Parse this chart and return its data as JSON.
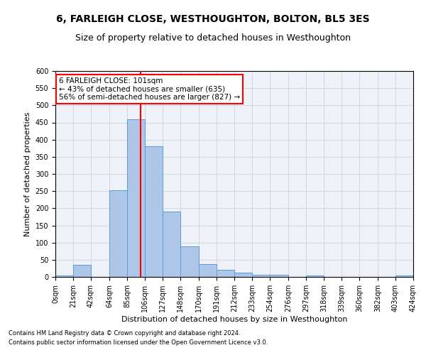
{
  "title": "6, FARLEIGH CLOSE, WESTHOUGHTON, BOLTON, BL5 3ES",
  "subtitle": "Size of property relative to detached houses in Westhoughton",
  "xlabel": "Distribution of detached houses by size in Westhoughton",
  "ylabel": "Number of detached properties",
  "footnote1": "Contains HM Land Registry data © Crown copyright and database right 2024.",
  "footnote2": "Contains public sector information licensed under the Open Government Licence v3.0.",
  "annotation_line1": "6 FARLEIGH CLOSE: 101sqm",
  "annotation_line2": "← 43% of detached houses are smaller (635)",
  "annotation_line3": "56% of semi-detached houses are larger (827) →",
  "property_size": 101,
  "bin_edges": [
    0,
    21,
    42,
    64,
    85,
    106,
    127,
    148,
    170,
    191,
    212,
    233,
    254,
    276,
    297,
    318,
    339,
    360,
    382,
    403,
    424
  ],
  "bin_counts": [
    5,
    35,
    0,
    253,
    460,
    380,
    190,
    90,
    38,
    20,
    13,
    7,
    6,
    0,
    5,
    0,
    0,
    0,
    0,
    5
  ],
  "bar_color": "#aec6e8",
  "bar_edge_color": "#5b9bd5",
  "vline_color": "red",
  "vline_x": 101,
  "ylim": [
    0,
    600
  ],
  "yticks": [
    0,
    50,
    100,
    150,
    200,
    250,
    300,
    350,
    400,
    450,
    500,
    550,
    600
  ],
  "grid_color": "#d0d8e8",
  "bg_color": "#eef2f8",
  "title_fontsize": 10,
  "subtitle_fontsize": 9,
  "xlabel_fontsize": 8,
  "ylabel_fontsize": 8,
  "tick_fontsize": 7,
  "footnote_fontsize": 6,
  "annot_fontsize": 7.5
}
